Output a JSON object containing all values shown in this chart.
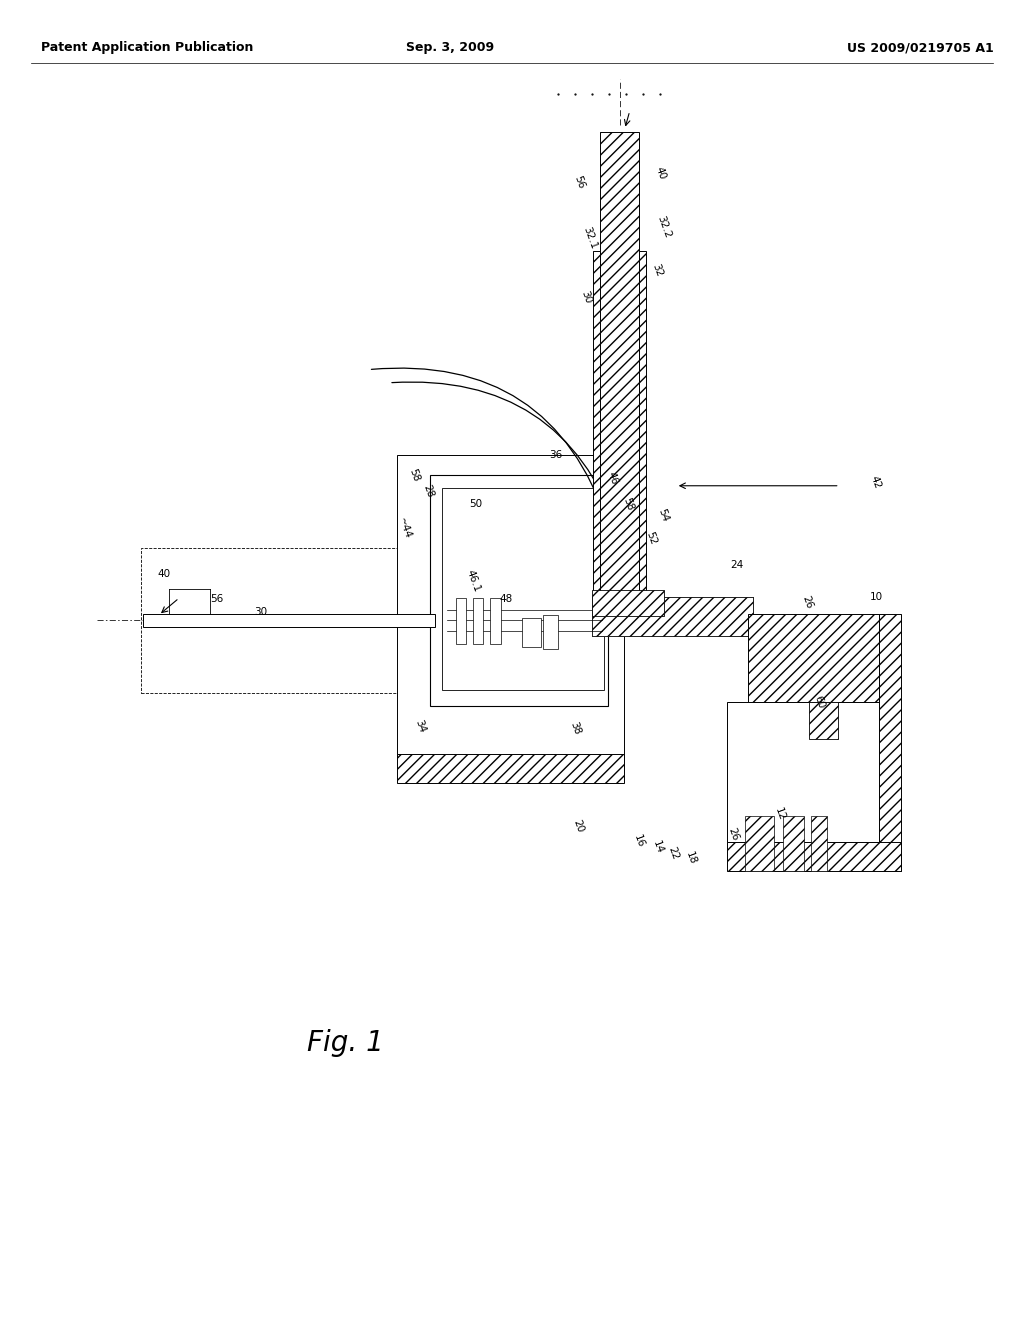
{
  "background": "#ffffff",
  "header_left": "Patent Application Publication",
  "header_center": "Sep. 3, 2009",
  "header_right": "US 2009/0219705 A1",
  "fig_label": "Fig. 1",
  "page_width": 10.24,
  "page_height": 13.2
}
